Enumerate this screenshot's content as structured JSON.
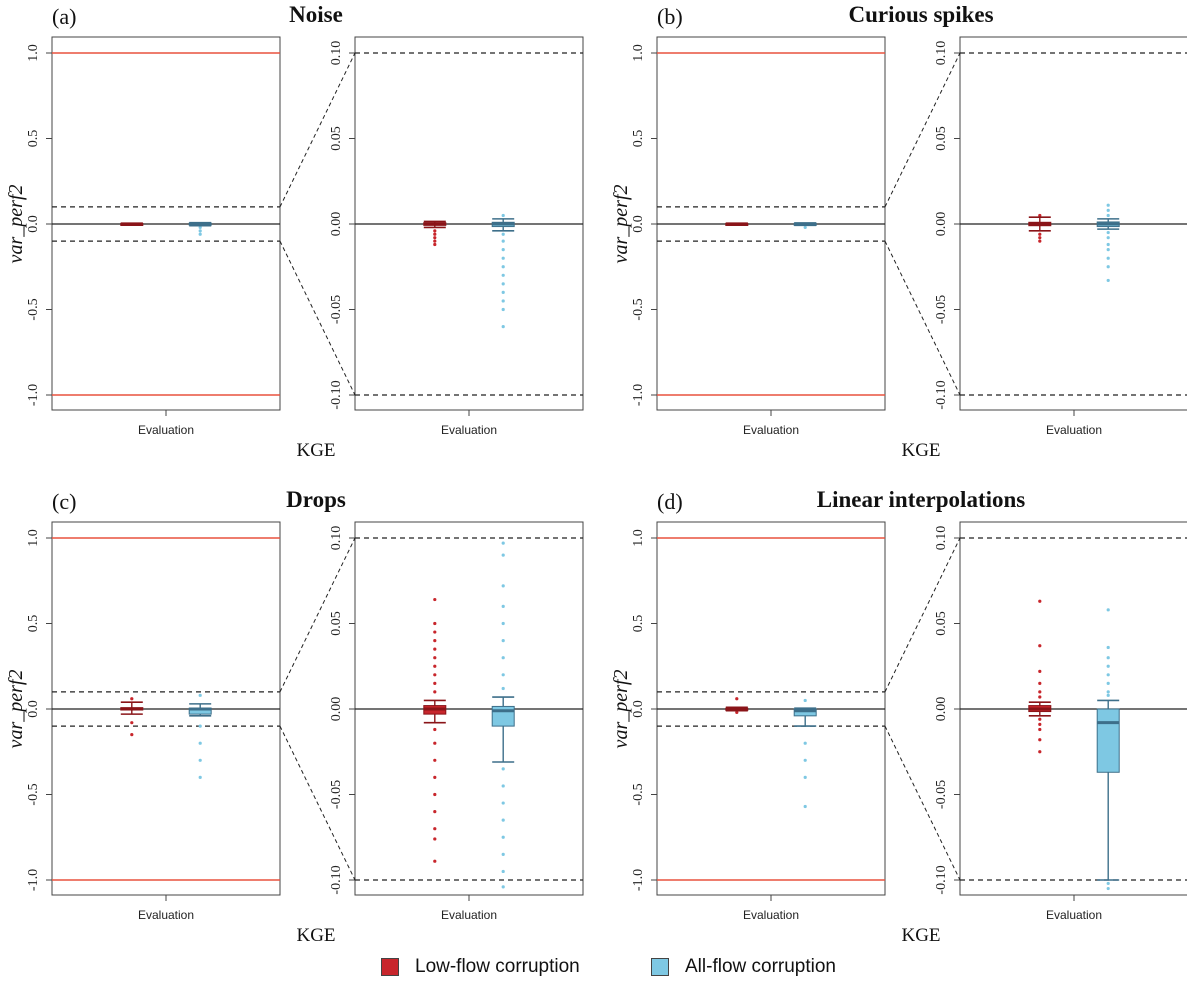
{
  "colors": {
    "low": "#c8262c",
    "low_dark": "#8a1418",
    "all": "#7ec8e3",
    "all_dark": "#3d6f8a",
    "limit": "#e8523f"
  },
  "legend": {
    "low_label": "Low-flow corruption",
    "all_label": "All-flow corruption"
  },
  "chart_data": [
    {
      "type": "box",
      "panel_label": "(a)",
      "title": "Noise",
      "ylabel": "var_perf2",
      "xlabel": "KGE",
      "tick_label": "Evaluation",
      "left": {
        "ylim": [
          -1.05,
          1.05
        ],
        "yticks": [
          "1.0",
          "0.5",
          "0.0",
          "-0.5",
          "-1.0"
        ],
        "limit_lines": [
          1.0,
          -1.0
        ],
        "zoom_band": [
          0.1,
          -0.1
        ],
        "series": [
          {
            "name": "Low-flow corruption",
            "q1": -0.003,
            "median": 0.0,
            "q3": 0.003,
            "whisker_low": -0.005,
            "whisker_high": 0.005,
            "outliers": []
          },
          {
            "name": "All-flow corruption",
            "q1": -0.005,
            "median": 0.0,
            "q3": 0.005,
            "whisker_low": -0.01,
            "whisker_high": 0.008,
            "outliers": [
              -0.02,
              -0.04,
              -0.06
            ]
          }
        ]
      },
      "right": {
        "ylim": [
          -0.105,
          0.105
        ],
        "yticks": [
          "0.10",
          "0.05",
          "0.00",
          "-0.05",
          "-0.10"
        ],
        "dashed_lines": [
          0.1,
          -0.1
        ],
        "series": [
          {
            "name": "Low-flow corruption",
            "q1": -0.0008,
            "median": 0.0,
            "q3": 0.0008,
            "whisker_low": -0.002,
            "whisker_high": 0.0015,
            "outliers": [
              -0.004,
              -0.006,
              -0.008,
              -0.01,
              -0.012
            ]
          },
          {
            "name": "All-flow corruption",
            "q1": -0.0015,
            "median": 0.0,
            "q3": 0.001,
            "whisker_low": -0.004,
            "whisker_high": 0.003,
            "outliers": [
              0.005,
              -0.006,
              -0.01,
              -0.015,
              -0.02,
              -0.025,
              -0.03,
              -0.035,
              -0.04,
              -0.045,
              -0.05,
              -0.06
            ]
          }
        ]
      }
    },
    {
      "type": "box",
      "panel_label": "(b)",
      "title": "Curious spikes",
      "ylabel": "var_perf2",
      "xlabel": "KGE",
      "tick_label": "Evaluation",
      "left": {
        "ylim": [
          -1.05,
          1.05
        ],
        "yticks": [
          "1.0",
          "0.5",
          "0.0",
          "-0.5",
          "-1.0"
        ],
        "limit_lines": [
          1.0,
          -1.0
        ],
        "zoom_band": [
          0.1,
          -0.1
        ],
        "series": [
          {
            "name": "Low-flow corruption",
            "q1": -0.003,
            "median": 0.0,
            "q3": 0.003,
            "whisker_low": -0.005,
            "whisker_high": 0.005,
            "outliers": []
          },
          {
            "name": "All-flow corruption",
            "q1": -0.004,
            "median": 0.0,
            "q3": 0.004,
            "whisker_low": -0.008,
            "whisker_high": 0.006,
            "outliers": [
              -0.02
            ]
          }
        ]
      },
      "right": {
        "ylim": [
          -0.105,
          0.105
        ],
        "yticks": [
          "0.10",
          "0.05",
          "0.00",
          "-0.05",
          "-0.10"
        ],
        "dashed_lines": [
          0.1,
          -0.1
        ],
        "series": [
          {
            "name": "Low-flow corruption",
            "q1": -0.001,
            "median": 0.0,
            "q3": 0.001,
            "whisker_low": -0.004,
            "whisker_high": 0.004,
            "outliers": [
              0.005,
              -0.006,
              -0.008,
              -0.01
            ]
          },
          {
            "name": "All-flow corruption",
            "q1": -0.0015,
            "median": 0.0,
            "q3": 0.0012,
            "whisker_low": -0.003,
            "whisker_high": 0.003,
            "outliers": [
              0.005,
              0.008,
              0.011,
              -0.005,
              -0.008,
              -0.012,
              -0.015,
              -0.02,
              -0.025,
              -0.033
            ]
          }
        ]
      }
    },
    {
      "type": "box",
      "panel_label": "(c)",
      "title": "Drops",
      "ylabel": "var_perf2",
      "xlabel": "KGE",
      "tick_label": "Evaluation",
      "left": {
        "ylim": [
          -1.05,
          1.05
        ],
        "yticks": [
          "1.0",
          "0.5",
          "0.0",
          "-0.5",
          "-1.0"
        ],
        "limit_lines": [
          1.0,
          -1.0
        ],
        "zoom_band": [
          0.1,
          -0.1
        ],
        "series": [
          {
            "name": "Low-flow corruption",
            "q1": -0.006,
            "median": 0.0,
            "q3": 0.008,
            "whisker_low": -0.03,
            "whisker_high": 0.04,
            "outliers": [
              0.06,
              -0.08,
              -0.15
            ]
          },
          {
            "name": "All-flow corruption",
            "q1": -0.03,
            "median": 0.0,
            "q3": 0.005,
            "whisker_low": -0.04,
            "whisker_high": 0.03,
            "outliers": [
              0.08,
              -0.1,
              -0.2,
              -0.3,
              -0.4
            ]
          }
        ]
      },
      "right": {
        "ylim": [
          -0.105,
          0.105
        ],
        "yticks": [
          "0.10",
          "0.05",
          "0.00",
          "-0.05",
          "-0.10"
        ],
        "dashed_lines": [
          0.1,
          -0.1
        ],
        "series": [
          {
            "name": "Low-flow corruption",
            "q1": -0.003,
            "median": 0.0,
            "q3": 0.002,
            "whisker_low": -0.008,
            "whisker_high": 0.005,
            "outliers": [
              0.064,
              0.05,
              0.045,
              0.04,
              0.035,
              0.03,
              0.025,
              0.02,
              0.015,
              0.01,
              -0.012,
              -0.02,
              -0.03,
              -0.04,
              -0.05,
              -0.06,
              -0.07,
              -0.076,
              -0.089
            ]
          },
          {
            "name": "All-flow corruption",
            "q1": -0.01,
            "median": -0.001,
            "q3": 0.0015,
            "whisker_low": -0.031,
            "whisker_high": 0.007,
            "outliers": [
              0.097,
              0.09,
              0.072,
              0.06,
              0.05,
              0.04,
              0.03,
              0.02,
              0.012,
              -0.035,
              -0.045,
              -0.055,
              -0.065,
              -0.075,
              -0.085,
              -0.095,
              -0.104
            ]
          }
        ]
      }
    },
    {
      "type": "box",
      "panel_label": "(d)",
      "title": "Linear interpolations",
      "ylabel": "var_perf2",
      "xlabel": "KGE",
      "tick_label": "Evaluation",
      "left": {
        "ylim": [
          -1.05,
          1.05
        ],
        "yticks": [
          "1.0",
          "0.5",
          "0.0",
          "-0.5",
          "-1.0"
        ],
        "limit_lines": [
          1.0,
          -1.0
        ],
        "zoom_band": [
          0.1,
          -0.1
        ],
        "series": [
          {
            "name": "Low-flow corruption",
            "q1": -0.004,
            "median": 0.0,
            "q3": 0.004,
            "whisker_low": -0.01,
            "whisker_high": 0.01,
            "outliers": [
              0.06,
              -0.02
            ]
          },
          {
            "name": "All-flow corruption",
            "q1": -0.04,
            "median": -0.01,
            "q3": 0.0,
            "whisker_low": -0.1,
            "whisker_high": 0.005,
            "outliers": [
              0.05,
              -0.2,
              -0.3,
              -0.4,
              -0.57
            ]
          }
        ]
      },
      "right": {
        "ylim": [
          -0.105,
          0.105
        ],
        "yticks": [
          "0.10",
          "0.05",
          "0.00",
          "-0.05",
          "-0.10"
        ],
        "dashed_lines": [
          0.1,
          -0.1
        ],
        "series": [
          {
            "name": "Low-flow corruption",
            "q1": -0.0015,
            "median": 0.0,
            "q3": 0.002,
            "whisker_low": -0.004,
            "whisker_high": 0.004,
            "outliers": [
              0.063,
              0.037,
              0.022,
              0.015,
              0.01,
              0.007,
              -0.006,
              -0.009,
              -0.012,
              -0.018,
              -0.025
            ]
          },
          {
            "name": "All-flow corruption",
            "q1": -0.037,
            "median": -0.008,
            "q3": 0.0,
            "whisker_low": -0.1,
            "whisker_high": 0.005,
            "outliers": [
              0.058,
              0.036,
              0.03,
              0.025,
              0.02,
              0.015,
              0.01,
              0.008,
              -0.102,
              -0.105
            ]
          }
        ]
      }
    }
  ]
}
